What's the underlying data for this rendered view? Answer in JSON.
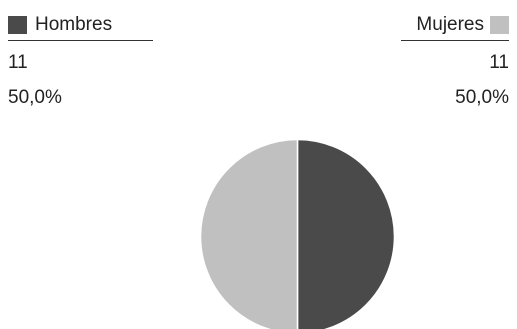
{
  "chart_data": {
    "type": "pie",
    "title": "",
    "legend_placement": "top",
    "slices": [
      {
        "name": "Hombres",
        "count": "11",
        "percent": "50,0%",
        "value": 11,
        "color": "#4a4a4a"
      },
      {
        "name": "Mujeres",
        "count": "11",
        "percent": "50,0%",
        "value": 11,
        "color": "#c0c0c0"
      }
    ]
  }
}
